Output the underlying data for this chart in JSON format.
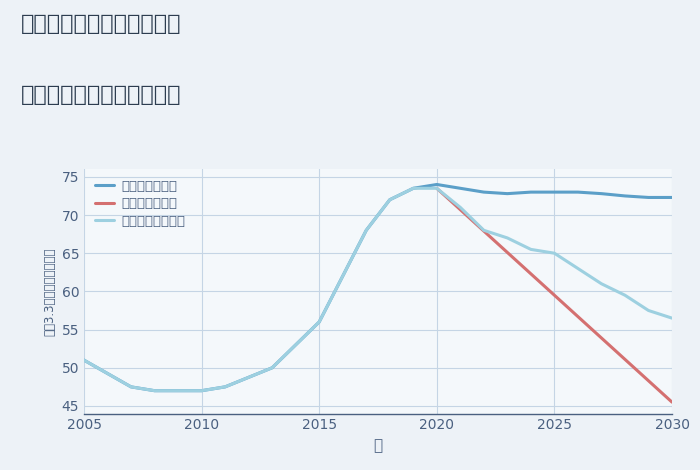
{
  "title_line1": "福岡県太宰府市観世音寺の",
  "title_line2": "中古マンションの価格推移",
  "xlabel": "年",
  "ylabel": "平（3.3㎡）単価（万円）",
  "fig_bg_color": "#edf2f7",
  "plot_bg_color": "#f4f8fb",
  "grid_color": "#c5d5e5",
  "title_color": "#2d3d50",
  "tick_color": "#4a6080",
  "xlim": [
    2005,
    2030
  ],
  "ylim": [
    44,
    76
  ],
  "yticks": [
    45,
    50,
    55,
    60,
    65,
    70,
    75
  ],
  "xticks": [
    2005,
    2010,
    2015,
    2020,
    2025,
    2030
  ],
  "good_scenario": {
    "label": "グッドシナリオ",
    "color": "#5b9fc8",
    "linewidth": 2.2,
    "x": [
      2005,
      2007,
      2008,
      2009,
      2010,
      2011,
      2013,
      2015,
      2017,
      2018,
      2019,
      2020,
      2021,
      2022,
      2023,
      2024,
      2025,
      2026,
      2027,
      2028,
      2029,
      2030
    ],
    "y": [
      51,
      47.5,
      47,
      47,
      47,
      47.5,
      50,
      56,
      68,
      72,
      73.5,
      74,
      73.5,
      73,
      72.8,
      73,
      73,
      73,
      72.8,
      72.5,
      72.3,
      72.3
    ]
  },
  "bad_scenario": {
    "label": "バッドシナリオ",
    "color": "#d47070",
    "linewidth": 2.2,
    "x": [
      2020,
      2025,
      2030
    ],
    "y": [
      73.5,
      59.5,
      45.5
    ]
  },
  "normal_scenario": {
    "label": "ノーマルシナリオ",
    "color": "#9dd0e0",
    "linewidth": 2.2,
    "x": [
      2005,
      2007,
      2008,
      2009,
      2010,
      2011,
      2013,
      2015,
      2017,
      2018,
      2019,
      2020,
      2021,
      2022,
      2023,
      2024,
      2025,
      2026,
      2027,
      2028,
      2029,
      2030
    ],
    "y": [
      51,
      47.5,
      47,
      47,
      47,
      47.5,
      50,
      56,
      68,
      72,
      73.5,
      73.5,
      71,
      68,
      67,
      65.5,
      65,
      63,
      61,
      59.5,
      57.5,
      56.5
    ]
  }
}
